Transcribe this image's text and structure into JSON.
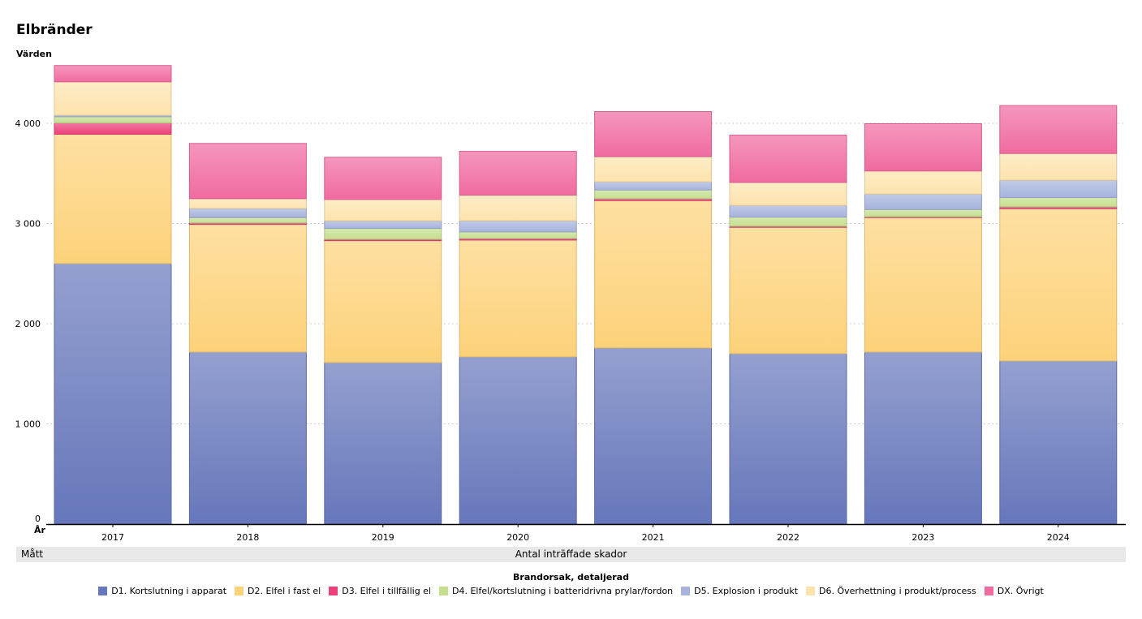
{
  "title": "Elbränder",
  "chart_data": {
    "type": "bar",
    "stacked": true,
    "title": "Elbränder",
    "ylabel": "Värden",
    "xlabel": "År",
    "ylim": [
      0,
      4577
    ],
    "yticks": [
      0,
      1000,
      2000,
      3000,
      4000
    ],
    "ytick_labels": [
      "0",
      "1 000",
      "2 000",
      "3 000",
      "4 000"
    ],
    "grid": true,
    "categories": [
      "2017",
      "2018",
      "2019",
      "2020",
      "2021",
      "2022",
      "2023",
      "2024"
    ],
    "measure_label": "Mått",
    "measure_value": "Antal inträffade skador",
    "legend_title": "Brandorsak, detaljerad",
    "legend_position": "bottom",
    "series": [
      {
        "name": "D1. Kortslutning i apparat",
        "color": "#6677bb",
        "values": [
          2600,
          1717,
          1612,
          1669,
          1758,
          1701,
          1717,
          1628
        ]
      },
      {
        "name": "D2. Elfel i fast el",
        "color": "#fdd27a",
        "values": [
          1291,
          1274,
          1217,
          1166,
          1471,
          1261,
          1342,
          1520
        ]
      },
      {
        "name": "D3. Elfel i tillfällig el",
        "color": "#ec407a",
        "values": [
          113,
          15,
          14,
          16,
          19,
          11,
          8,
          19
        ]
      },
      {
        "name": "D4. Elfel/kortslutning i batteridrivna prylar/fordon",
        "color": "#c5df8f",
        "values": [
          62,
          53,
          108,
          65,
          87,
          91,
          73,
          92
        ]
      },
      {
        "name": "D5. Explosion i produkt",
        "color": "#a7b3dd",
        "values": [
          14,
          92,
          76,
          111,
          81,
          117,
          154,
          173
        ]
      },
      {
        "name": "D6. Överhettning i produkt/process",
        "color": "#fde4ae",
        "values": [
          334,
          97,
          213,
          256,
          251,
          229,
          230,
          267
        ]
      },
      {
        "name": "DX. Övrigt",
        "color": "#f06ba0",
        "values": [
          163,
          551,
          421,
          437,
          450,
          472,
          472,
          478
        ]
      }
    ]
  }
}
